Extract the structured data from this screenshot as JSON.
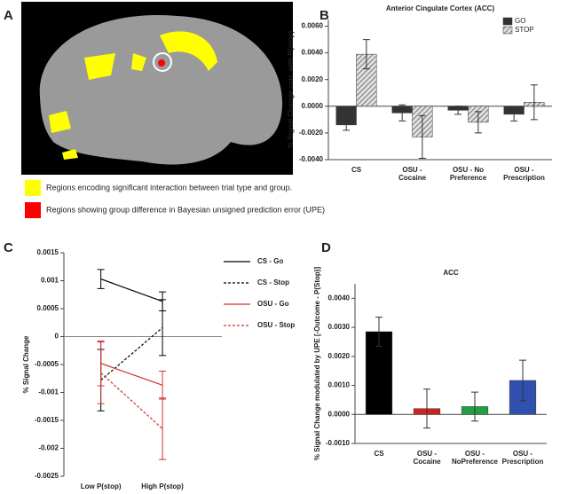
{
  "panel_a": {
    "label": "A",
    "legend": [
      {
        "text": "Regions encoding significant interaction between trial type and group.",
        "color": "#ffff00"
      },
      {
        "text": "Regions showing group difference in Bayesian unsigned prediction error (UPE)",
        "color": "#ff0000"
      }
    ]
  },
  "chart_data": [
    {
      "type": "bar",
      "label": "B",
      "title": "Anterior Cingulate Cortex (ACC)",
      "y_label": "% Signal Change corr. with P(stop)",
      "categories": [
        [
          "CS"
        ],
        [
          "OSU -",
          "Cocaine"
        ],
        [
          "OSU - No",
          "Preference"
        ],
        [
          "OSU -",
          "Prescription"
        ]
      ],
      "series": [
        {
          "name": "GO",
          "color": "#333333",
          "values": [
            -0.0014,
            -0.0005,
            -0.0003,
            -0.0006
          ],
          "errors": [
            0.0004,
            0.0006,
            0.0003,
            0.0005
          ]
        },
        {
          "name": "STOP",
          "color": "#bbbbbb",
          "hatch": true,
          "values": [
            0.0039,
            -0.0023,
            -0.0012,
            0.0003
          ],
          "errors": [
            0.0011,
            0.0016,
            0.0008,
            0.0013
          ]
        }
      ],
      "ylim": [
        -0.004,
        0.0065
      ],
      "yticks": [
        {
          "value": -0.004,
          "label": "-0.0040"
        },
        {
          "value": -0.002,
          "label": "-0.0020"
        },
        {
          "value": 0,
          "label": "0.0000"
        },
        {
          "value": 0.002,
          "label": "0.0020"
        },
        {
          "value": 0.004,
          "label": "0.0040"
        },
        {
          "value": 0.006,
          "label": "0.0060"
        }
      ],
      "legend": "upper right"
    },
    {
      "type": "line",
      "label": "C",
      "y_label": "% Signal Change",
      "categories": [
        [
          "Low P(stop)"
        ],
        [
          "High P(stop)"
        ]
      ],
      "series": [
        {
          "name": "CS - Go",
          "color": "#000000",
          "dash": false,
          "values": [
            0.00103,
            0.00063
          ],
          "errors": [
            0.00017,
            0.00017
          ]
        },
        {
          "name": "CS - Stop",
          "color": "#000000",
          "dash": true,
          "values": [
            -0.00078,
            0.00016
          ],
          "errors": [
            0.00055,
            0.0005
          ]
        },
        {
          "name": "OSU - Go",
          "color": "#d03030",
          "dash": false,
          "values": [
            -0.00048,
            -0.00087
          ],
          "errors": [
            0.0004,
            0.00025
          ]
        },
        {
          "name": "OSU - Stop",
          "color": "#d03030",
          "dash": true,
          "values": [
            -0.00065,
            -0.00165
          ],
          "errors": [
            0.00055,
            0.00055
          ]
        }
      ],
      "ylim": [
        -0.0025,
        0.0015
      ],
      "yticks": [
        -0.0025,
        -0.002,
        -0.0015,
        -0.001,
        -0.0005,
        0,
        0.0005,
        0.001,
        0.0015
      ],
      "legend": "right"
    },
    {
      "type": "bar",
      "label": "D",
      "title": "ACC",
      "y_label": "% Signal Change modulated by UPE [-Outcome - P(Stop)]",
      "categories": [
        [
          "CS"
        ],
        [
          "OSU -",
          "Cocaine"
        ],
        [
          "OSU -",
          "NoPreference"
        ],
        [
          "OSU -",
          "Prescription"
        ]
      ],
      "series": [
        {
          "colors": [
            "#000000",
            "#d02020",
            "#20a040",
            "#3050b0"
          ],
          "values": [
            0.00285,
            0.0002,
            0.00027,
            0.00117
          ],
          "errors": [
            0.0005,
            0.00067,
            0.0005,
            0.0007
          ]
        }
      ],
      "ylim": [
        -0.001,
        0.0045
      ],
      "yticks": [
        {
          "value": -0.001,
          "label": "-0.0010"
        },
        {
          "value": 0,
          "label": "0.0000"
        },
        {
          "value": 0.001,
          "label": "0.0010"
        },
        {
          "value": 0.002,
          "label": "0.0020"
        },
        {
          "value": 0.003,
          "label": "0.0030"
        },
        {
          "value": 0.004,
          "label": "0.0040"
        }
      ]
    }
  ]
}
